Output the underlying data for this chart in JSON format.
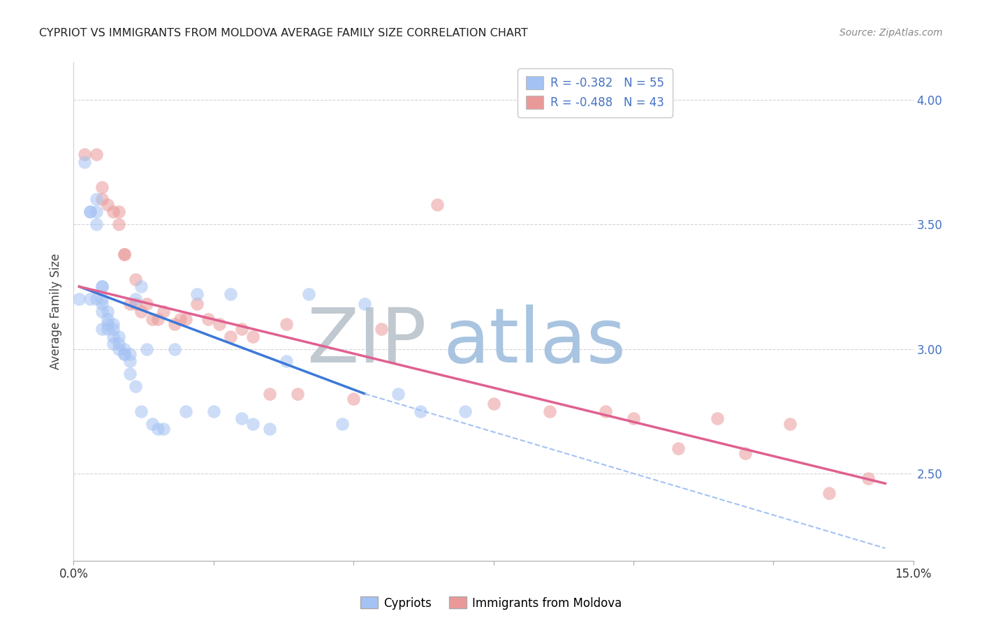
{
  "title": "CYPRIOT VS IMMIGRANTS FROM MOLDOVA AVERAGE FAMILY SIZE CORRELATION CHART",
  "source": "Source: ZipAtlas.com",
  "ylabel": "Average Family Size",
  "right_yticks": [
    2.5,
    3.0,
    3.5,
    4.0
  ],
  "right_ytick_labels": [
    "2.50",
    "3.00",
    "3.50",
    "4.00"
  ],
  "legend_blue_label": "R = -0.382   N = 55",
  "legend_pink_label": "R = -0.488   N = 43",
  "legend_bottom_blue": "Cypriots",
  "legend_bottom_pink": "Immigrants from Moldova",
  "blue_color": "#a4c2f4",
  "pink_color": "#ea9999",
  "blue_line_color": "#3c78d8",
  "pink_line_color": "#e06090",
  "dashed_line_color": "#a4c2f4",
  "watermark_zip_color": "#c0c8d0",
  "watermark_atlas_color": "#a8c4e0",
  "background_color": "#ffffff",
  "grid_color": "#d0d0d0",
  "xlim": [
    0.0,
    0.15
  ],
  "ylim": [
    2.15,
    4.15
  ],
  "blue_scatter_x": [
    0.001,
    0.002,
    0.003,
    0.003,
    0.003,
    0.004,
    0.004,
    0.004,
    0.004,
    0.005,
    0.005,
    0.005,
    0.005,
    0.005,
    0.005,
    0.006,
    0.006,
    0.006,
    0.006,
    0.007,
    0.007,
    0.007,
    0.007,
    0.008,
    0.008,
    0.008,
    0.009,
    0.009,
    0.009,
    0.01,
    0.01,
    0.01,
    0.011,
    0.011,
    0.012,
    0.012,
    0.013,
    0.014,
    0.015,
    0.016,
    0.018,
    0.02,
    0.022,
    0.025,
    0.028,
    0.03,
    0.032,
    0.035,
    0.038,
    0.042,
    0.048,
    0.052,
    0.058,
    0.062,
    0.07
  ],
  "blue_scatter_y": [
    3.2,
    3.75,
    3.55,
    3.55,
    3.2,
    3.6,
    3.55,
    3.5,
    3.2,
    3.25,
    3.25,
    3.2,
    3.18,
    3.15,
    3.08,
    3.15,
    3.12,
    3.1,
    3.08,
    3.1,
    3.08,
    3.05,
    3.02,
    3.05,
    3.02,
    3.0,
    2.98,
    3.0,
    2.98,
    2.98,
    2.95,
    2.9,
    2.85,
    3.2,
    3.25,
    2.75,
    3.0,
    2.7,
    2.68,
    2.68,
    3.0,
    2.75,
    3.22,
    2.75,
    3.22,
    2.72,
    2.7,
    2.68,
    2.95,
    3.22,
    2.7,
    3.18,
    2.82,
    2.75,
    2.75
  ],
  "pink_scatter_x": [
    0.002,
    0.004,
    0.005,
    0.005,
    0.006,
    0.007,
    0.008,
    0.008,
    0.009,
    0.009,
    0.01,
    0.011,
    0.011,
    0.012,
    0.013,
    0.014,
    0.015,
    0.016,
    0.018,
    0.019,
    0.02,
    0.022,
    0.024,
    0.026,
    0.028,
    0.03,
    0.032,
    0.035,
    0.038,
    0.04,
    0.05,
    0.055,
    0.065,
    0.075,
    0.085,
    0.095,
    0.1,
    0.108,
    0.115,
    0.12,
    0.128,
    0.135,
    0.142
  ],
  "pink_scatter_y": [
    3.78,
    3.78,
    3.65,
    3.6,
    3.58,
    3.55,
    3.5,
    3.55,
    3.38,
    3.38,
    3.18,
    3.28,
    3.18,
    3.15,
    3.18,
    3.12,
    3.12,
    3.15,
    3.1,
    3.12,
    3.12,
    3.18,
    3.12,
    3.1,
    3.05,
    3.08,
    3.05,
    2.82,
    3.1,
    2.82,
    2.8,
    3.08,
    3.58,
    2.78,
    2.75,
    2.75,
    2.72,
    2.6,
    2.72,
    2.58,
    2.7,
    2.42,
    2.48
  ],
  "blue_trend_x": [
    0.001,
    0.052
  ],
  "blue_trend_y": [
    3.25,
    2.82
  ],
  "pink_trend_x": [
    0.001,
    0.145
  ],
  "pink_trend_y": [
    3.25,
    2.46
  ],
  "dash_trend_x": [
    0.052,
    0.145
  ],
  "dash_trend_y": [
    2.82,
    2.2
  ]
}
